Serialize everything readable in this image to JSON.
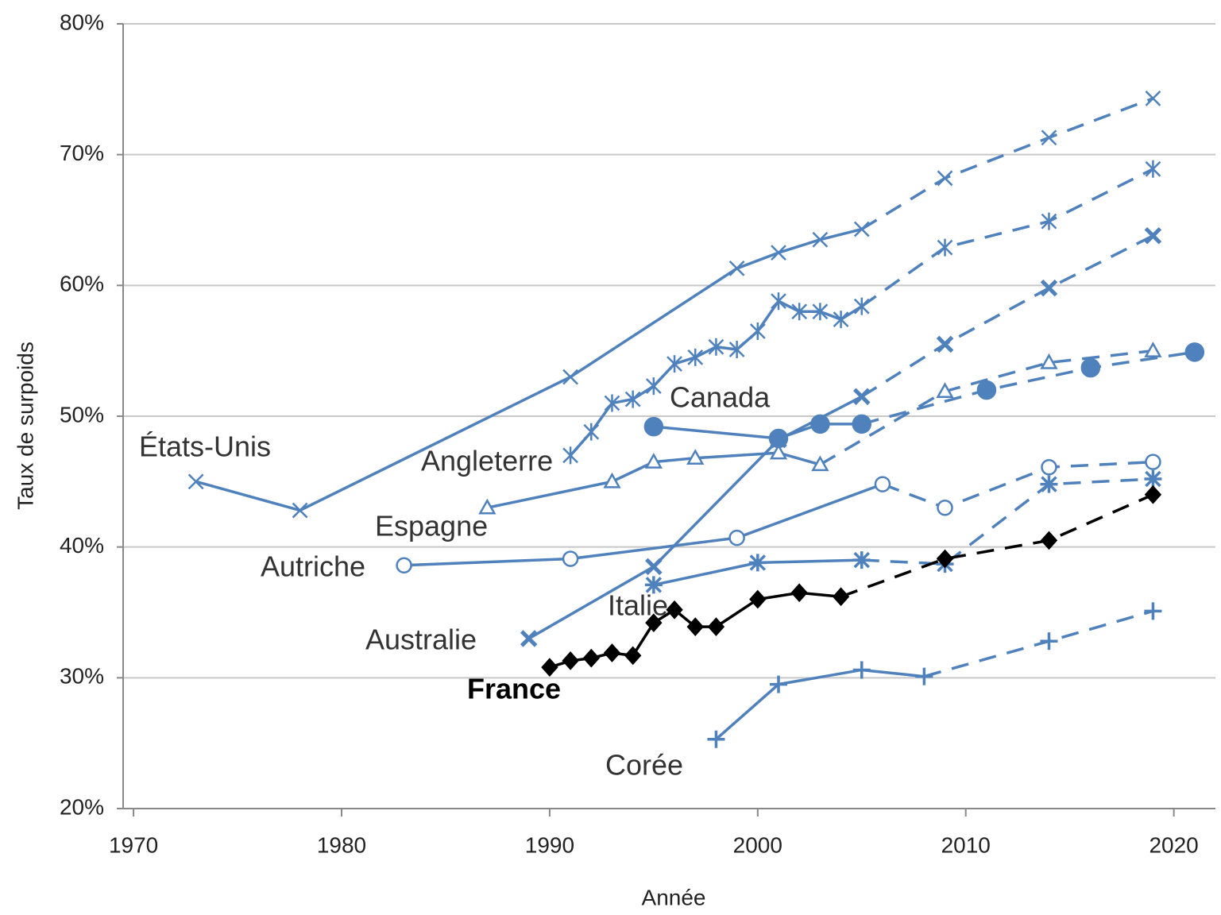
{
  "chart_data": {
    "type": "line",
    "xlabel": "Année",
    "ylabel": "Taux de surpoids",
    "xlim": [
      1969.5,
      2022
    ],
    "xticks": [
      1970,
      1980,
      1990,
      2000,
      2010,
      2020
    ],
    "ylim": [
      20,
      80
    ],
    "yticks": [
      {
        "value": 20,
        "label": "20%"
      },
      {
        "value": 30,
        "label": "30%"
      },
      {
        "value": 40,
        "label": "40%"
      },
      {
        "value": 50,
        "label": "50%"
      },
      {
        "value": 60,
        "label": "60%"
      },
      {
        "value": 70,
        "label": "70%"
      },
      {
        "value": 80,
        "label": "80%"
      }
    ],
    "grid": true,
    "series": [
      {
        "name": "États-Unis",
        "color": "#4f81bd",
        "marker": "x",
        "observed": {
          "x": [
            1973,
            1978,
            1991,
            1999,
            2001,
            2003,
            2005
          ],
          "values": [
            45.0,
            42.8,
            53.0,
            61.3,
            62.5,
            63.5,
            64.3
          ]
        },
        "projected": {
          "x": [
            2009,
            2014,
            2019
          ],
          "values": [
            68.2,
            71.3,
            74.3
          ]
        }
      },
      {
        "name": "Angleterre",
        "color": "#4f81bd",
        "marker": "asterisk",
        "observed": {
          "x": [
            1991,
            1992,
            1993,
            1994,
            1995,
            1996,
            1997,
            1998,
            1999,
            2000,
            2001,
            2002,
            2003,
            2004,
            2005
          ],
          "values": [
            47.0,
            48.8,
            51.0,
            51.3,
            52.3,
            54.0,
            54.5,
            55.3,
            55.1,
            56.5,
            58.8,
            58.0,
            58.0,
            57.4,
            58.4
          ]
        },
        "projected": {
          "x": [
            2009,
            2014,
            2019
          ],
          "values": [
            62.9,
            64.9,
            68.9
          ]
        }
      },
      {
        "name": "Canada",
        "color": "#4f81bd",
        "marker": "circle",
        "observed": {
          "x": [
            1995,
            2001,
            2003,
            2005
          ],
          "values": [
            49.2,
            48.3,
            49.4,
            49.4
          ]
        },
        "projected": {
          "x": [
            2011,
            2016,
            2021
          ],
          "values": [
            52.0,
            53.7,
            54.9
          ]
        }
      },
      {
        "name": "Espagne",
        "color": "#4f81bd",
        "marker": "triangle",
        "observed": {
          "x": [
            1987,
            1993,
            1995,
            1997,
            2001,
            2003
          ],
          "values": [
            43.0,
            45.0,
            46.5,
            46.8,
            47.2,
            46.3
          ]
        },
        "projected": {
          "x": [
            2009,
            2014,
            2019
          ],
          "values": [
            51.9,
            54.1,
            55.0
          ]
        }
      },
      {
        "name": "Autriche",
        "color": "#4f81bd",
        "marker": "circle-open",
        "observed": {
          "x": [
            1983,
            1991,
            1999,
            2006
          ],
          "values": [
            38.6,
            39.1,
            40.7,
            44.8
          ]
        },
        "projected": {
          "x": [
            2009,
            2014,
            2019
          ],
          "values": [
            43.0,
            46.1,
            46.5
          ]
        }
      },
      {
        "name": "Italie",
        "color": "#4f81bd",
        "marker": "star",
        "observed": {
          "x": [
            1995,
            2000,
            2005
          ],
          "values": [
            37.1,
            38.8,
            39.0
          ]
        },
        "projected": {
          "x": [
            2009,
            2014,
            2019
          ],
          "values": [
            38.7,
            44.8,
            45.2
          ]
        }
      },
      {
        "name": "Australie",
        "color": "#4f81bd",
        "marker": "x-bold",
        "observed": {
          "x": [
            1989,
            1995,
            2001,
            2005
          ],
          "values": [
            33.0,
            38.5,
            48.2,
            51.5
          ]
        },
        "projected": {
          "x": [
            2009,
            2014,
            2019
          ],
          "values": [
            55.5,
            59.8,
            63.8
          ]
        }
      },
      {
        "name": "France",
        "color": "#000000",
        "marker": "diamond",
        "bold": true,
        "observed": {
          "x": [
            1990,
            1991,
            1992,
            1993,
            1994,
            1995,
            1996,
            1997,
            1998,
            2000,
            2002,
            2004
          ],
          "values": [
            30.8,
            31.3,
            31.5,
            31.9,
            31.7,
            34.2,
            35.2,
            33.9,
            33.9,
            36.0,
            36.5,
            36.2
          ]
        },
        "projected": {
          "x": [
            2009,
            2014,
            2019
          ],
          "values": [
            39.1,
            40.5,
            44.0
          ]
        }
      },
      {
        "name": "Corée",
        "color": "#4f81bd",
        "marker": "plus",
        "observed": {
          "x": [
            1998,
            2001,
            2005,
            2008
          ],
          "values": [
            25.3,
            29.5,
            30.6,
            30.1
          ]
        },
        "projected": {
          "x": [
            2014,
            2019
          ],
          "values": [
            32.8,
            35.1
          ]
        }
      }
    ]
  }
}
